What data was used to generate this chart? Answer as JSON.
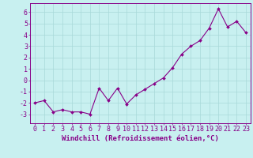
{
  "xlabel": "Windchill (Refroidissement éolien,°C)",
  "x": [
    0,
    1,
    2,
    3,
    4,
    5,
    6,
    7,
    8,
    9,
    10,
    11,
    12,
    13,
    14,
    15,
    16,
    17,
    18,
    19,
    20,
    21,
    22,
    23
  ],
  "y": [
    -2.0,
    -1.8,
    -2.8,
    -2.6,
    -2.8,
    -2.8,
    -3.0,
    -0.7,
    -1.8,
    -0.7,
    -2.1,
    -1.3,
    -0.8,
    -0.3,
    0.2,
    1.1,
    2.3,
    3.0,
    3.5,
    4.6,
    6.3,
    4.7,
    5.2,
    4.2
  ],
  "line_color": "#880088",
  "marker": "D",
  "marker_size": 2.0,
  "background_color": "#c8f0f0",
  "grid_color": "#a8d8d8",
  "ylim": [
    -3.8,
    6.8
  ],
  "yticks": [
    -3,
    -2,
    -1,
    0,
    1,
    2,
    3,
    4,
    5,
    6
  ],
  "xticks": [
    0,
    1,
    2,
    3,
    4,
    5,
    6,
    7,
    8,
    9,
    10,
    11,
    12,
    13,
    14,
    15,
    16,
    17,
    18,
    19,
    20,
    21,
    22,
    23
  ],
  "tick_color": "#880088",
  "axis_color": "#880088",
  "label_fontsize": 6.5,
  "tick_fontsize": 6.0
}
